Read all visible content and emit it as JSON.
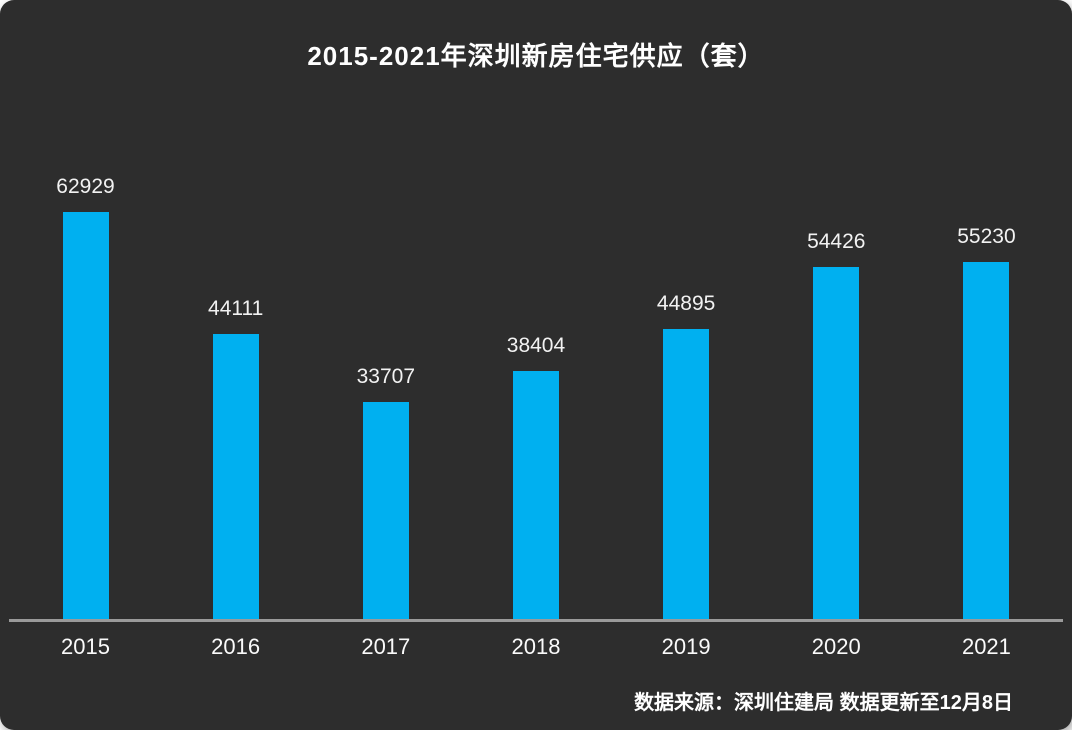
{
  "title": "2015-2021年深圳新房住宅供应（套）",
  "source_note": "数据来源：深圳住建局 数据更新至12月8日",
  "colors": {
    "panel_background": "#2d2d2d",
    "bar": "#00b0f0",
    "axis_line": "#9a9a9a",
    "label_text": "#f2f2f2",
    "title_text": "#ffffff"
  },
  "chart_data": {
    "type": "bar",
    "title": "2015-2021年深圳新房住宅供应（套）",
    "categories": [
      "2015",
      "2016",
      "2017",
      "2018",
      "2019",
      "2020",
      "2021"
    ],
    "values": [
      62929,
      44111,
      33707,
      38404,
      44895,
      54426,
      55230
    ],
    "xlabel": "",
    "ylabel": "",
    "ylim": [
      0,
      62929
    ],
    "grid": false,
    "legend": false,
    "data_labels": true,
    "bar_color": "#00b0f0",
    "source": "数据来源：深圳住建局 数据更新至12月8日"
  }
}
